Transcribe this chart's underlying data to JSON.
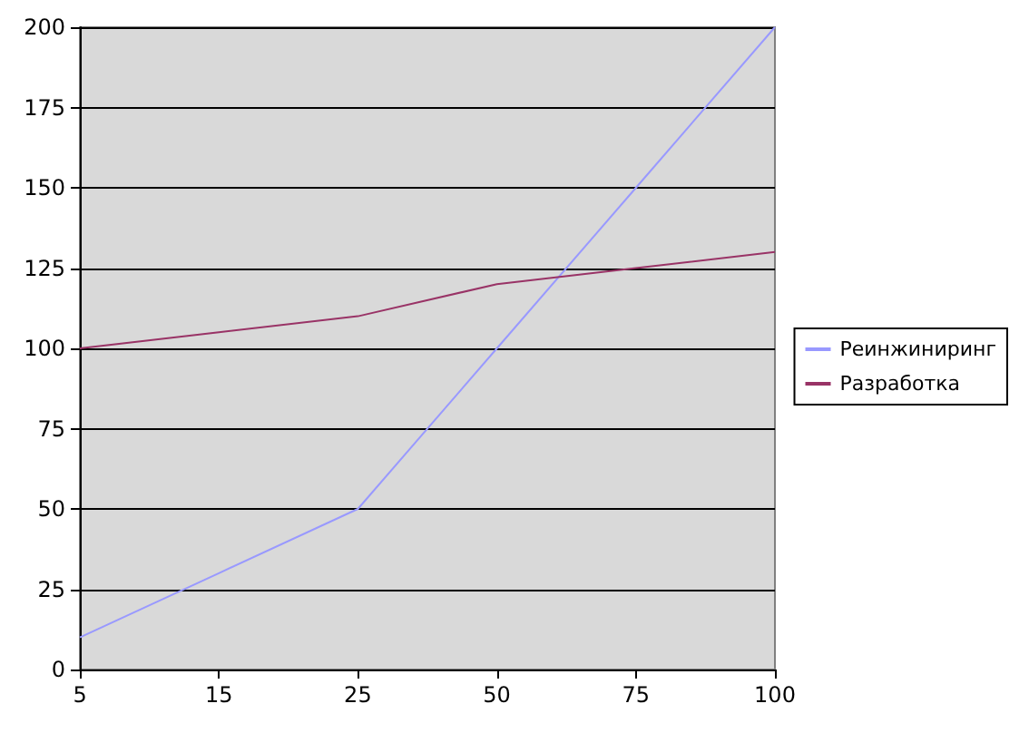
{
  "chart_data": {
    "type": "line",
    "categories": [
      "5",
      "15",
      "25",
      "50",
      "75",
      "100"
    ],
    "series": [
      {
        "name": "Реинжиниринг",
        "color": "#9999ff",
        "values": [
          10,
          30,
          50,
          100,
          150,
          200
        ]
      },
      {
        "name": "Разработка",
        "color": "#993366",
        "values": [
          100,
          105,
          110,
          120,
          125,
          130
        ]
      }
    ],
    "ylim": [
      0,
      200
    ],
    "yticks": [
      0,
      25,
      50,
      75,
      100,
      125,
      150,
      175,
      200
    ],
    "grid": "y",
    "legend": "right",
    "marker": "none",
    "line_style": "solid"
  }
}
